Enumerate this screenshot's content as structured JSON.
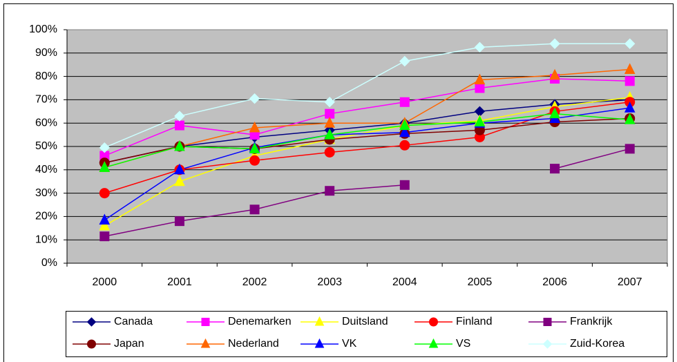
{
  "chart_data": {
    "type": "line",
    "categories": [
      "2000",
      "2001",
      "2002",
      "2003",
      "2004",
      "2005",
      "2006",
      "2007"
    ],
    "ylim": [
      0,
      100
    ],
    "yticks": [
      {
        "value": 0,
        "label": "0%"
      },
      {
        "value": 10,
        "label": "10%"
      },
      {
        "value": 20,
        "label": "20%"
      },
      {
        "value": 30,
        "label": "30%"
      },
      {
        "value": 40,
        "label": "40%"
      },
      {
        "value": 50,
        "label": "50%"
      },
      {
        "value": 60,
        "label": "60%"
      },
      {
        "value": 70,
        "label": "70%"
      },
      {
        "value": 80,
        "label": "80%"
      },
      {
        "value": 90,
        "label": "90%"
      },
      {
        "value": 100,
        "label": "100%"
      }
    ],
    "grid": true,
    "plot_background": "#c0c0c0",
    "legend": "bottom",
    "series": [
      {
        "name": "Canada",
        "color": "#000080",
        "marker": "diamond",
        "values": [
          43,
          50,
          54,
          57,
          60,
          65,
          68,
          70
        ]
      },
      {
        "name": "Denemarken",
        "color": "#ff00ff",
        "marker": "square",
        "values": [
          46,
          59,
          55,
          64,
          69,
          75,
          79,
          78
        ]
      },
      {
        "name": "Duitsland",
        "color": "#ffff00",
        "marker": "triangle",
        "values": [
          16,
          35,
          46,
          53,
          59,
          61,
          67,
          71
        ]
      },
      {
        "name": "Finland",
        "color": "#ff0000",
        "marker": "circle",
        "values": [
          30,
          40,
          44,
          47.5,
          50.5,
          54,
          65,
          69
        ]
      },
      {
        "name": "Frankrijk",
        "color": "#800080",
        "marker": "square",
        "values": [
          11.5,
          18,
          23,
          31,
          33.5,
          null,
          40.5,
          49
        ]
      },
      {
        "name": "Japan",
        "color": "#800000",
        "marker": "circle",
        "values": [
          43,
          50,
          49,
          53,
          55.5,
          57,
          60.5,
          62
        ]
      },
      {
        "name": "Nederland",
        "color": "#ff6600",
        "marker": "triangle",
        "values": [
          41,
          50,
          58,
          60,
          60,
          78.5,
          80.5,
          83
        ]
      },
      {
        "name": "VK",
        "color": "#0000ff",
        "marker": "triangle",
        "values": [
          18.5,
          40,
          49.5,
          55,
          56,
          60,
          62,
          66.5
        ]
      },
      {
        "name": "VS",
        "color": "#00ff00",
        "marker": "triangle",
        "values": [
          41,
          50,
          49,
          55,
          59,
          60.5,
          64,
          61.5
        ]
      },
      {
        "name": "Zuid-Korea",
        "color": "#ccffff",
        "marker": "diamond",
        "values": [
          49.5,
          63,
          70.5,
          69,
          86.5,
          92.5,
          94,
          94
        ]
      }
    ]
  }
}
